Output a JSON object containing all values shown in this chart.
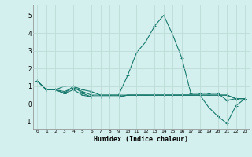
{
  "xlabel": "Humidex (Indice chaleur)",
  "background_color": "#d4f0ee",
  "grid_color": "#b8d8d4",
  "line_color": "#1a7a6e",
  "xlim": [
    -0.5,
    23.5
  ],
  "ylim": [
    -1.4,
    5.6
  ],
  "xticks": [
    0,
    1,
    2,
    3,
    4,
    5,
    6,
    7,
    8,
    9,
    10,
    11,
    12,
    13,
    14,
    15,
    16,
    17,
    18,
    19,
    20,
    21,
    22,
    23
  ],
  "yticks": [
    -1,
    0,
    1,
    2,
    3,
    4,
    5
  ],
  "series": [
    [
      1.3,
      0.8,
      0.8,
      1.0,
      1.0,
      0.8,
      0.7,
      0.5,
      0.5,
      0.5,
      1.6,
      2.9,
      3.5,
      4.4,
      5.0,
      3.9,
      2.6,
      0.6,
      0.6,
      0.6,
      0.6,
      0.2,
      0.3,
      0.3
    ],
    [
      1.3,
      0.8,
      0.8,
      0.6,
      0.8,
      0.5,
      0.4,
      0.4,
      0.4,
      0.4,
      0.5,
      0.5,
      0.5,
      0.5,
      0.5,
      0.5,
      0.5,
      0.5,
      0.5,
      -0.2,
      -0.7,
      -1.1,
      -0.1,
      0.3
    ],
    [
      1.3,
      0.8,
      0.8,
      0.6,
      1.0,
      0.6,
      0.4,
      0.4,
      0.4,
      0.4,
      0.5,
      0.5,
      0.5,
      0.5,
      0.5,
      0.5,
      0.5,
      0.5,
      0.5,
      0.5,
      0.5,
      0.5,
      0.3,
      0.3
    ],
    [
      1.3,
      0.8,
      0.8,
      0.7,
      0.9,
      0.7,
      0.5,
      0.5,
      0.5,
      0.5,
      0.5,
      0.5,
      0.5,
      0.5,
      0.5,
      0.5,
      0.5,
      0.5,
      0.5,
      0.5,
      0.5,
      0.5,
      0.3,
      0.3
    ]
  ]
}
